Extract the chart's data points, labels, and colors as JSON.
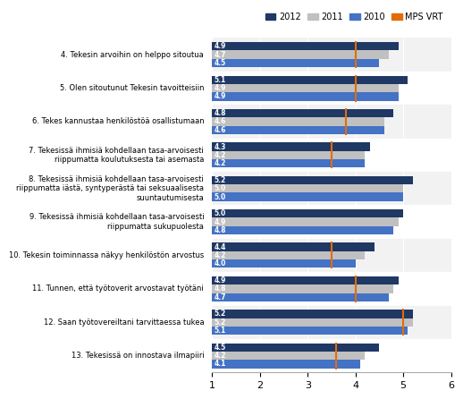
{
  "categories": [
    "4. Tekesin arvoihin on helppo sitoutua",
    "5. Olen sitoutunut Tekesin tavoitteisiin",
    "6. Tekes kannustaa henkilöstöä osallistumaan",
    "7. Tekesissä ihmisiä kohdellaan tasa-arvoisesti\nriippumatta koulutuksesta tai asemasta",
    "8. Tekesissä ihmisiä kohdellaan tasa-arvoisesti\nriippumatta iästä, syntyperästä tai seksuaalisesta\nsuuntautumisesta",
    "9. Tekesissä ihmisiä kohdellaan tasa-arvoisesti\nriippumatta sukupuolesta",
    "10. Tekesin toiminnassa näkyy henkilöstön arvostus",
    "11. Tunnen, että työtoverit arvostavat työtäni",
    "12. Saan työtovereiltani tarvittaessa tukea",
    "13. Tekesissä on innostava ilmapiiri"
  ],
  "data_2012": [
    4.9,
    5.1,
    4.8,
    4.3,
    5.2,
    5.0,
    4.4,
    4.9,
    5.2,
    4.5
  ],
  "data_2011": [
    4.7,
    4.9,
    4.6,
    4.2,
    5.0,
    4.9,
    4.2,
    4.8,
    5.2,
    4.2
  ],
  "data_2010": [
    4.5,
    4.9,
    4.6,
    4.2,
    5.0,
    4.8,
    4.0,
    4.7,
    5.1,
    4.1
  ],
  "mps_vrt": [
    4.0,
    4.0,
    3.8,
    3.5,
    null,
    null,
    3.5,
    4.0,
    5.0,
    3.6
  ],
  "color_2012": "#1f3864",
  "color_2011": "#c0c0c0",
  "color_2010": "#4472c4",
  "color_mps": "#e36c09",
  "xlim_min": 1,
  "xlim_max": 6,
  "xticks": [
    1,
    2,
    3,
    4,
    5,
    6
  ],
  "bar_height": 0.22,
  "bar_gap": 0.22,
  "legend_labels": [
    "2012",
    "2011",
    "2010",
    "MPS VRT"
  ],
  "bg_even": "#f2f2f2",
  "bg_odd": "#ffffff"
}
